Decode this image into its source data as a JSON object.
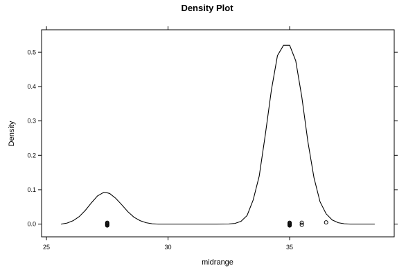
{
  "chart_data": {
    "type": "line",
    "title": "Density Plot",
    "xlabel": "midrange",
    "ylabel": "Density",
    "xlim": [
      24.8,
      39.3
    ],
    "ylim": [
      -0.037,
      0.565
    ],
    "x_ticks": [
      25,
      30,
      35
    ],
    "x_tick_labels": [
      "25",
      "30",
      "35"
    ],
    "y_ticks": [
      0.0,
      0.1,
      0.2,
      0.3,
      0.4,
      0.5
    ],
    "y_tick_labels": [
      "0.0",
      "0.1",
      "0.2",
      "0.3",
      "0.4",
      "0.5"
    ],
    "series": [
      {
        "x": [
          25.6,
          25.85,
          26.1,
          26.35,
          26.6,
          26.85,
          27.1,
          27.35,
          27.5,
          27.6,
          27.85,
          28.1,
          28.35,
          28.6,
          28.85,
          29.1,
          29.35,
          29.6,
          29.85,
          30.1,
          31.0,
          32.0,
          32.5,
          32.75,
          33.0,
          33.25,
          33.5,
          33.75,
          34.0,
          34.25,
          34.5,
          34.75,
          35.0,
          35.25,
          35.5,
          35.75,
          36.0,
          36.25,
          36.5,
          36.75,
          37.0,
          37.25,
          37.5,
          37.75,
          38.0,
          38.5
        ],
        "y": [
          0.0,
          0.003,
          0.01,
          0.022,
          0.04,
          0.062,
          0.082,
          0.092,
          0.091,
          0.089,
          0.075,
          0.056,
          0.036,
          0.02,
          0.01,
          0.004,
          0.001,
          0.0,
          0.0,
          0.0,
          0.0,
          0.0,
          0.0005,
          0.002,
          0.008,
          0.025,
          0.07,
          0.14,
          0.26,
          0.39,
          0.49,
          0.52,
          0.52,
          0.475,
          0.37,
          0.24,
          0.135,
          0.065,
          0.03,
          0.012,
          0.004,
          0.001,
          0.0,
          0.0,
          0.0,
          0.0
        ]
      }
    ],
    "rug_points": [
      {
        "x": 27.5,
        "y": -0.004
      },
      {
        "x": 27.5,
        "y": -0.002
      },
      {
        "x": 27.5,
        "y": 0.0
      },
      {
        "x": 27.5,
        "y": 0.002
      },
      {
        "x": 27.5,
        "y": 0.004
      },
      {
        "x": 35.0,
        "y": -0.004
      },
      {
        "x": 35.0,
        "y": -0.002
      },
      {
        "x": 35.0,
        "y": 0.0
      },
      {
        "x": 35.0,
        "y": 0.002
      },
      {
        "x": 35.0,
        "y": 0.004
      },
      {
        "x": 35.5,
        "y": -0.002
      },
      {
        "x": 35.5,
        "y": 0.004
      },
      {
        "x": 36.5,
        "y": 0.005
      }
    ],
    "grid": false,
    "legend": "none",
    "line_color": "#000000"
  }
}
